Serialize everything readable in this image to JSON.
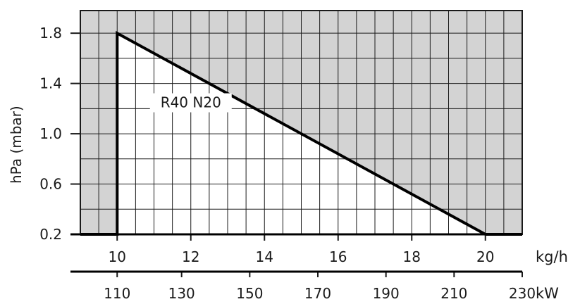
{
  "chart_data": {
    "type": "area",
    "title": "",
    "ylabel": "hPa (mbar)",
    "xlabel": "kg/h",
    "x2label": "kW",
    "grid": true,
    "legend": "none",
    "colors": {
      "outside_region": "#d3d3d3",
      "inside_region": "#ffffff",
      "grid": "#1a1a1a",
      "boundary": "#000000"
    },
    "xlim": [
      9,
      21
    ],
    "ylim": [
      0.2,
      1.98
    ],
    "x_ticks": [
      "10",
      "12",
      "14",
      "16",
      "18",
      "20"
    ],
    "x_tick_values": [
      10,
      12,
      14,
      16,
      18,
      20
    ],
    "y_ticks": [
      "0.2",
      "0.6",
      "1.0",
      "1.4",
      "1.8"
    ],
    "y_tick_values": [
      0.2,
      0.6,
      1.0,
      1.4,
      1.8
    ],
    "x2_ticks": [
      "110",
      "130",
      "150",
      "170",
      "190",
      "210",
      "230"
    ],
    "x2_tick_positions_kg_h": [
      10,
      11.75,
      13.6,
      15.45,
      17.3,
      19.15,
      21
    ],
    "series": [
      {
        "name": "R40 N20",
        "points": [
          {
            "x": 10,
            "y": 0.2
          },
          {
            "x": 10,
            "y": 1.8
          },
          {
            "x": 20,
            "y": 0.2
          }
        ]
      }
    ],
    "annotations": [
      {
        "text": "R40 N20",
        "x": 12.0,
        "y": 1.21
      }
    ]
  }
}
